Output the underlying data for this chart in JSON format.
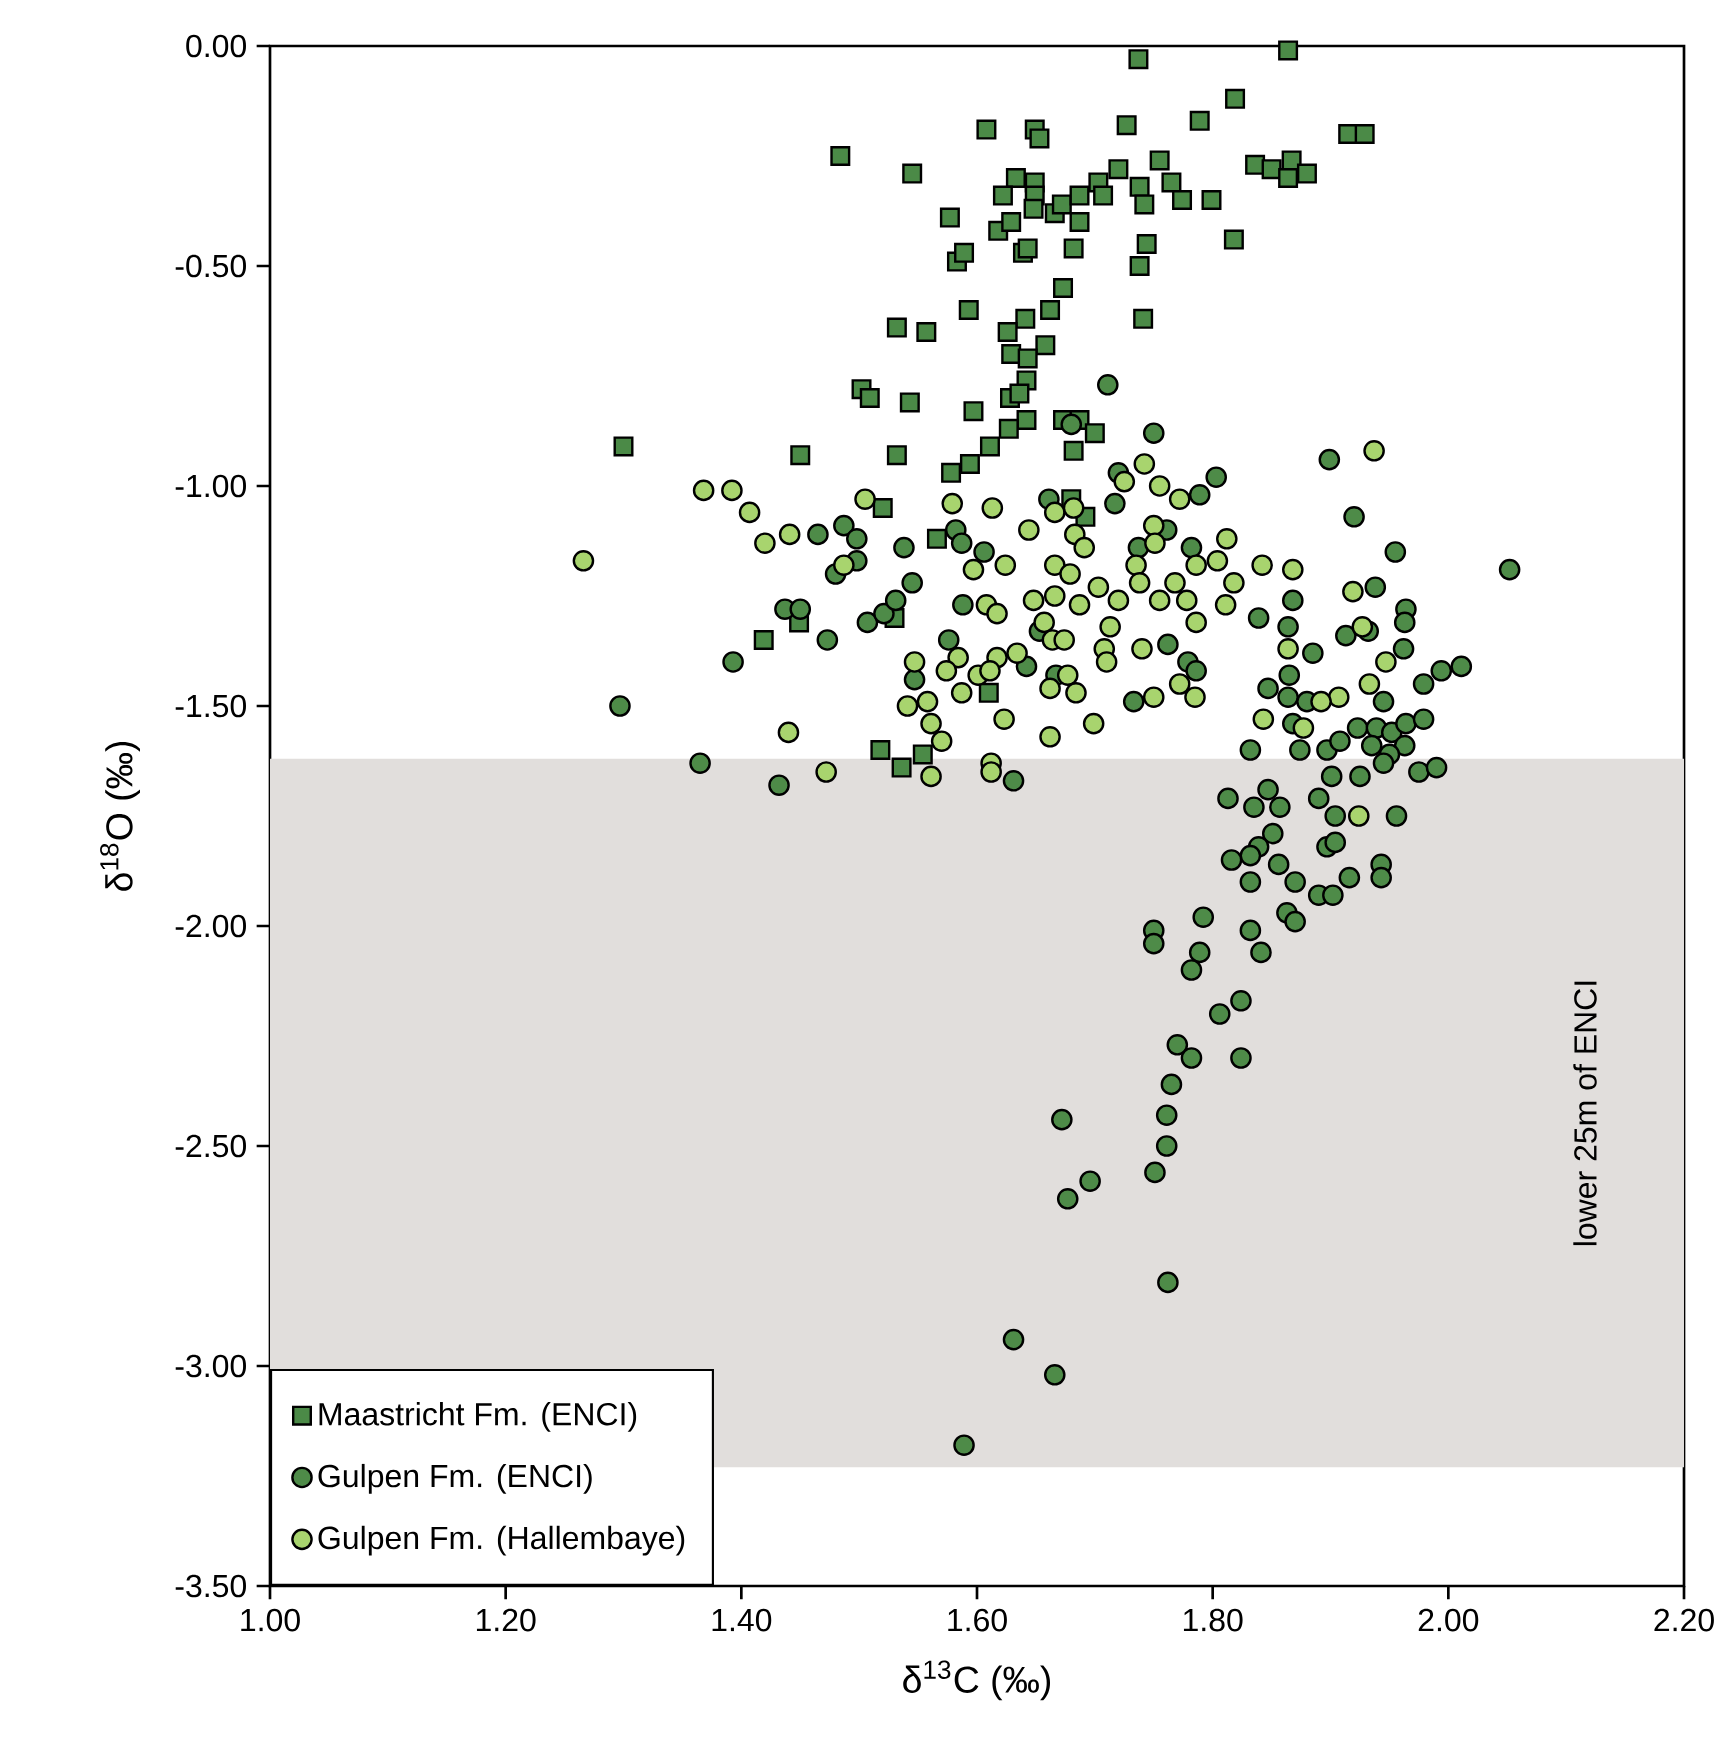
{
  "chart_data": {
    "type": "scatter",
    "xlabel": "δ$^{13}$C (‰)",
    "ylabel": "δ$^{18}$O (‰)",
    "xlim": [
      1.0,
      2.2
    ],
    "ylim": [
      -3.5,
      0.0
    ],
    "xticks": [
      {
        "value": 1.0,
        "label": "1.00"
      },
      {
        "value": 1.2,
        "label": "1.20"
      },
      {
        "value": 1.4,
        "label": "1.40"
      },
      {
        "value": 1.6,
        "label": "1.60"
      },
      {
        "value": 1.8,
        "label": "1.80"
      },
      {
        "value": 2.0,
        "label": "2.00"
      },
      {
        "value": 2.2,
        "label": "2.20"
      }
    ],
    "yticks": [
      {
        "value": -3.5,
        "label": "-3.50"
      },
      {
        "value": -3.0,
        "label": "-3.00"
      },
      {
        "value": -2.5,
        "label": "-2.50"
      },
      {
        "value": -2.0,
        "label": "-2.00"
      },
      {
        "value": -1.5,
        "label": "-1.50"
      },
      {
        "value": -1.0,
        "label": "-1.00"
      },
      {
        "value": -0.5,
        "label": "-0.50"
      },
      {
        "value": 0.0,
        "label": "0.00"
      }
    ],
    "legend": "bottom left",
    "grid": false,
    "bands": [
      {
        "axis": "y",
        "from": -3.23,
        "to": -1.62,
        "label": "lower 25m of ENCI",
        "color": "#e1dedc"
      }
    ],
    "series": [
      {
        "name": "Maastricht Fm. (ENCI)",
        "color": "#4b8a47",
        "marker": "square",
        "x": [
          1.737,
          1.864,
          1.819,
          1.608,
          1.649,
          1.653,
          1.727,
          1.789,
          1.915,
          1.929,
          1.484,
          1.545,
          1.633,
          1.649,
          1.622,
          1.649,
          1.648,
          1.666,
          1.672,
          1.687,
          1.703,
          1.707,
          1.72,
          1.738,
          1.742,
          1.755,
          1.765,
          1.774,
          1.799,
          1.836,
          1.85,
          1.867,
          1.864,
          1.88,
          1.577,
          1.618,
          1.629,
          1.687,
          1.583,
          1.589,
          1.639,
          1.643,
          1.682,
          1.744,
          1.738,
          1.818,
          1.673,
          1.593,
          1.532,
          1.557,
          1.641,
          1.662,
          1.741,
          1.626,
          1.629,
          1.658,
          1.643,
          1.642,
          1.502,
          1.509,
          1.543,
          1.597,
          1.628,
          1.636,
          1.673,
          1.687,
          1.642,
          1.627,
          1.7,
          1.682,
          1.611,
          1.594,
          1.578,
          1.3,
          1.45,
          1.532,
          1.52,
          1.566,
          1.449,
          1.53,
          1.419,
          1.61,
          1.518,
          1.536,
          1.554,
          1.68,
          1.692
        ],
        "values": [
          -0.03,
          -0.01,
          -0.12,
          -0.19,
          -0.19,
          -0.21,
          -0.18,
          -0.17,
          -0.2,
          -0.2,
          -0.25,
          -0.29,
          -0.3,
          -0.31,
          -0.34,
          -0.34,
          -0.37,
          -0.38,
          -0.36,
          -0.34,
          -0.31,
          -0.34,
          -0.28,
          -0.32,
          -0.36,
          -0.26,
          -0.31,
          -0.35,
          -0.35,
          -0.27,
          -0.28,
          -0.26,
          -0.3,
          -0.29,
          -0.39,
          -0.42,
          -0.4,
          -0.4,
          -0.49,
          -0.47,
          -0.47,
          -0.46,
          -0.46,
          -0.45,
          -0.5,
          -0.44,
          -0.55,
          -0.6,
          -0.64,
          -0.65,
          -0.62,
          -0.6,
          -0.62,
          -0.65,
          -0.7,
          -0.68,
          -0.71,
          -0.76,
          -0.78,
          -0.8,
          -0.81,
          -0.83,
          -0.8,
          -0.79,
          -0.85,
          -0.85,
          -0.85,
          -0.87,
          -0.88,
          -0.92,
          -0.91,
          -0.95,
          -0.97,
          -0.91,
          -0.93,
          -0.93,
          -1.05,
          -1.12,
          -1.31,
          -1.3,
          -1.35,
          -1.47,
          -1.6,
          -1.64,
          -1.61,
          -1.03,
          -1.07
        ]
      },
      {
        "name": "Gulpen Fm. (ENCI)",
        "color": "#4e8b48",
        "marker": "circle",
        "x": [
          1.297,
          1.393,
          1.365,
          1.432,
          1.473,
          1.437,
          1.45,
          1.465,
          1.487,
          1.498,
          1.498,
          1.48,
          1.507,
          1.521,
          1.531,
          1.545,
          1.538,
          1.582,
          1.587,
          1.606,
          1.588,
          1.576,
          1.547,
          1.642,
          1.631,
          1.661,
          1.667,
          1.653,
          1.803,
          1.789,
          1.717,
          1.92,
          1.955,
          2.052,
          1.938,
          1.964,
          1.963,
          1.932,
          1.913,
          1.868,
          1.839,
          1.864,
          1.885,
          1.962,
          1.865,
          1.847,
          1.864,
          1.88,
          1.945,
          1.979,
          1.994,
          2.011,
          1.733,
          1.762,
          1.779,
          1.786,
          1.782,
          1.737,
          1.761,
          1.868,
          1.874,
          1.897,
          1.908,
          1.923,
          1.939,
          1.935,
          1.952,
          1.964,
          1.979,
          1.963,
          1.95,
          1.945,
          1.975,
          1.99,
          1.925,
          1.901,
          1.832,
          1.813,
          1.847,
          1.89,
          1.835,
          1.857,
          1.851,
          1.839,
          1.832,
          1.816,
          1.832,
          1.856,
          1.87,
          1.904,
          1.956,
          1.897,
          1.904,
          1.916,
          1.943,
          1.943,
          1.89,
          1.902,
          1.863,
          1.87,
          1.792,
          1.832,
          1.841,
          1.789,
          1.824,
          1.806,
          1.824,
          1.711,
          1.68,
          1.75,
          1.72,
          1.899,
          1.75,
          1.75,
          1.782,
          1.77,
          1.782,
          1.765,
          1.672,
          1.761,
          1.761,
          1.751,
          1.696,
          1.677,
          1.762,
          1.631,
          1.666,
          1.589
        ],
        "values": [
          -1.5,
          -1.4,
          -1.63,
          -1.68,
          -1.35,
          -1.28,
          -1.28,
          -1.11,
          -1.09,
          -1.12,
          -1.17,
          -1.2,
          -1.31,
          -1.29,
          -1.26,
          -1.22,
          -1.14,
          -1.1,
          -1.13,
          -1.15,
          -1.27,
          -1.35,
          -1.44,
          -1.41,
          -1.67,
          -1.03,
          -1.43,
          -1.33,
          -0.98,
          -1.02,
          -1.04,
          -1.07,
          -1.15,
          -1.19,
          -1.23,
          -1.28,
          -1.31,
          -1.33,
          -1.34,
          -1.26,
          -1.3,
          -1.32,
          -1.38,
          -1.37,
          -1.43,
          -1.46,
          -1.48,
          -1.49,
          -1.49,
          -1.45,
          -1.42,
          -1.41,
          -1.49,
          -1.36,
          -1.4,
          -1.42,
          -1.14,
          -1.14,
          -1.1,
          -1.54,
          -1.6,
          -1.6,
          -1.58,
          -1.55,
          -1.55,
          -1.59,
          -1.56,
          -1.54,
          -1.53,
          -1.59,
          -1.61,
          -1.63,
          -1.65,
          -1.64,
          -1.66,
          -1.66,
          -1.6,
          -1.71,
          -1.69,
          -1.71,
          -1.73,
          -1.73,
          -1.79,
          -1.82,
          -1.84,
          -1.85,
          -1.9,
          -1.86,
          -1.9,
          -1.75,
          -1.75,
          -1.82,
          -1.81,
          -1.89,
          -1.86,
          -1.89,
          -1.93,
          -1.93,
          -1.97,
          -1.99,
          -1.98,
          -2.01,
          -2.06,
          -2.06,
          -2.17,
          -2.2,
          -2.3,
          -0.77,
          -0.86,
          -0.88,
          -0.97,
          -0.94,
          -2.01,
          -2.04,
          -2.1,
          -2.27,
          -2.3,
          -2.36,
          -2.44,
          -2.43,
          -2.5,
          -2.56,
          -2.58,
          -2.62,
          -2.81,
          -2.94,
          -3.02,
          -3.18
        ]
      },
      {
        "name": "Gulpen Fm. (Hallembaye)",
        "color": "#a8d46e",
        "marker": "circle",
        "x": [
          1.266,
          1.368,
          1.392,
          1.407,
          1.42,
          1.441,
          1.505,
          1.487,
          1.579,
          1.613,
          1.644,
          1.666,
          1.682,
          1.683,
          1.691,
          1.666,
          1.679,
          1.597,
          1.624,
          1.648,
          1.666,
          1.687,
          1.703,
          1.608,
          1.617,
          1.657,
          1.664,
          1.674,
          1.547,
          1.584,
          1.574,
          1.601,
          1.617,
          1.611,
          1.634,
          1.662,
          1.677,
          1.684,
          1.587,
          1.558,
          1.541,
          1.561,
          1.57,
          1.623,
          1.662,
          1.699,
          1.44,
          1.472,
          1.561,
          1.612,
          1.612,
          1.713,
          1.708,
          1.725,
          1.755,
          1.772,
          1.75,
          1.751,
          1.735,
          1.738,
          1.755,
          1.768,
          1.778,
          1.786,
          1.804,
          1.812,
          1.818,
          1.811,
          1.786,
          1.842,
          1.868,
          1.919,
          1.927,
          1.864,
          1.947,
          1.933,
          1.907,
          1.892,
          1.74,
          1.71,
          1.772,
          1.785,
          1.75,
          1.72,
          1.843,
          1.877,
          1.742,
          1.937,
          1.924
        ],
        "values": [
          -1.17,
          -1.01,
          -1.01,
          -1.06,
          -1.13,
          -1.11,
          -1.03,
          -1.18,
          -1.04,
          -1.05,
          -1.1,
          -1.06,
          -1.05,
          -1.11,
          -1.14,
          -1.18,
          -1.2,
          -1.19,
          -1.18,
          -1.26,
          -1.25,
          -1.27,
          -1.23,
          -1.27,
          -1.29,
          -1.31,
          -1.35,
          -1.35,
          -1.4,
          -1.39,
          -1.42,
          -1.43,
          -1.39,
          -1.42,
          -1.38,
          -1.46,
          -1.43,
          -1.47,
          -1.47,
          -1.49,
          -1.5,
          -1.54,
          -1.58,
          -1.53,
          -1.57,
          -1.54,
          -1.56,
          -1.65,
          -1.66,
          -1.63,
          -1.65,
          -1.32,
          -1.37,
          -0.99,
          -1.0,
          -1.03,
          -1.09,
          -1.13,
          -1.18,
          -1.22,
          -1.26,
          -1.22,
          -1.26,
          -1.18,
          -1.17,
          -1.12,
          -1.22,
          -1.27,
          -1.31,
          -1.18,
          -1.19,
          -1.24,
          -1.32,
          -1.37,
          -1.4,
          -1.45,
          -1.48,
          -1.49,
          -1.37,
          -1.4,
          -1.45,
          -1.48,
          -1.48,
          -1.26,
          -1.53,
          -1.55,
          -0.95,
          -0.92,
          -1.75
        ]
      }
    ]
  }
}
